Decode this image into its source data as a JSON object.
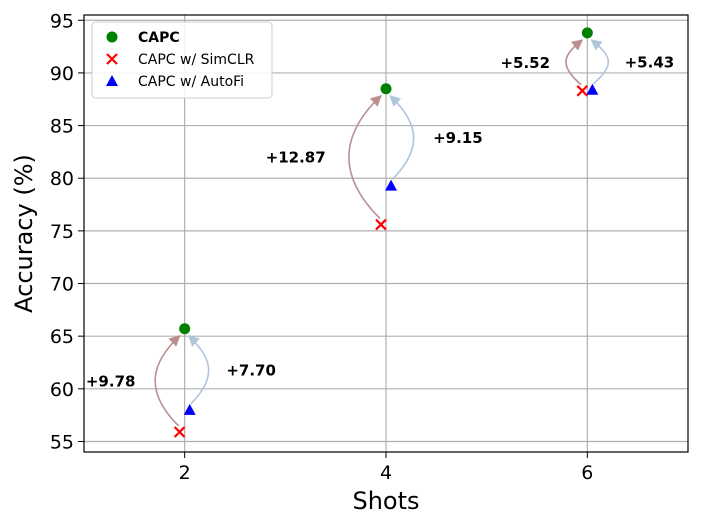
{
  "chart_data": {
    "type": "scatter",
    "xlabel": "Shots",
    "ylabel": "Accuracy (%)",
    "xlim": [
      1,
      7
    ],
    "ylim": [
      54,
      95.5
    ],
    "xticks": [
      2,
      4,
      6
    ],
    "yticks": [
      55,
      60,
      65,
      70,
      75,
      80,
      85,
      90,
      95
    ],
    "grid": true,
    "legend_position": "top-left",
    "series": [
      {
        "name": "CAPC",
        "marker": "circle",
        "color": "#008000",
        "bold": true,
        "x": [
          2,
          4,
          6
        ],
        "y": [
          65.7,
          88.5,
          93.8
        ]
      },
      {
        "name": "CAPC w/ SimCLR",
        "marker": "x",
        "color": "#ff0000",
        "bold": false,
        "x": [
          2,
          4,
          6
        ],
        "y": [
          55.9,
          75.6,
          88.3
        ]
      },
      {
        "name": "CAPC w/ AutoFi",
        "marker": "triangle",
        "color": "#0000ff",
        "bold": false,
        "x": [
          2,
          4,
          6
        ],
        "y": [
          58.0,
          79.3,
          88.4
        ]
      }
    ],
    "annotations": [
      {
        "text": "+9.78",
        "from_series": 1,
        "index": 0,
        "color": "#bc8f8f"
      },
      {
        "text": "+7.70",
        "from_series": 2,
        "index": 0,
        "color": "#b0c4de"
      },
      {
        "text": "+12.87",
        "from_series": 1,
        "index": 1,
        "color": "#bc8f8f"
      },
      {
        "text": "+9.15",
        "from_series": 2,
        "index": 1,
        "color": "#b0c4de"
      },
      {
        "text": "+5.52",
        "from_series": 1,
        "index": 2,
        "color": "#bc8f8f"
      },
      {
        "text": "+5.43",
        "from_series": 2,
        "index": 2,
        "color": "#b0c4de"
      }
    ]
  }
}
